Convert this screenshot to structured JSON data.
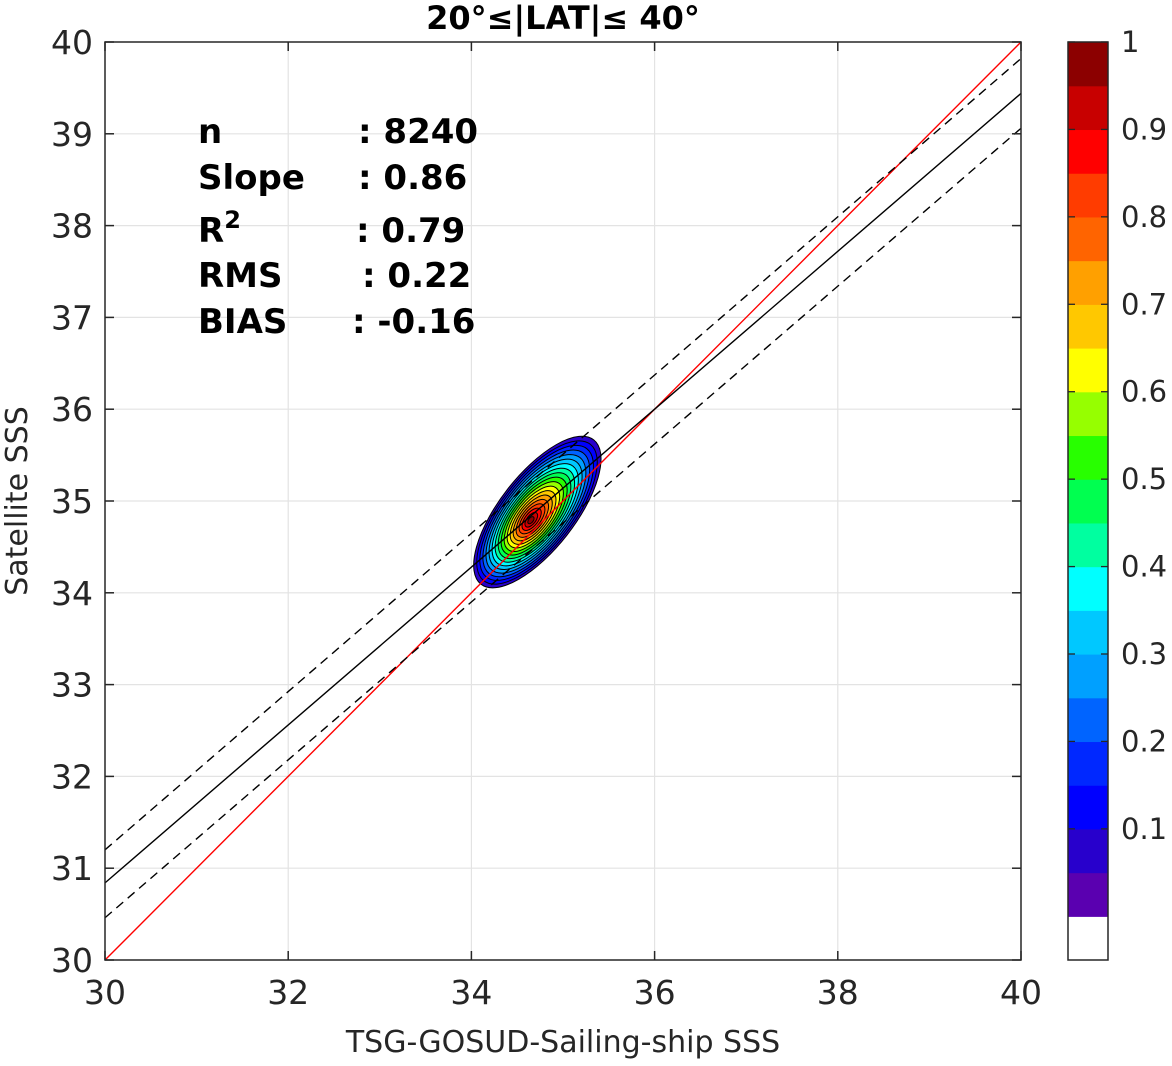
{
  "chart_data": {
    "type": "contour",
    "title": "20°≤|LAT|≤ 40°",
    "xlabel": "TSG-GOSUD-Sailing-ship SSS",
    "ylabel": "Satellite SSS",
    "xlim": [
      30,
      40
    ],
    "ylim": [
      30,
      40
    ],
    "xticks": [
      30,
      32,
      34,
      36,
      38,
      40
    ],
    "yticks": [
      30,
      31,
      32,
      33,
      34,
      35,
      36,
      37,
      38,
      39,
      40
    ],
    "grid": true,
    "stats": [
      {
        "label": "n",
        "value": ": 8240"
      },
      {
        "label": "Slope",
        "value": ": 0.86"
      },
      {
        "label": "R",
        "sup": "2",
        "value": ": 0.79"
      },
      {
        "label": "RMS",
        "value": ": 0.22"
      },
      {
        "label": "BIAS",
        "value": ": -0.16"
      }
    ],
    "lines": [
      {
        "name": "one-to-one",
        "color": "#ff0000",
        "style": "solid",
        "points": [
          [
            30,
            30
          ],
          [
            40,
            40
          ]
        ]
      },
      {
        "name": "regression",
        "color": "#000000",
        "style": "solid",
        "points": [
          [
            30,
            30.84
          ],
          [
            40,
            39.44
          ]
        ]
      },
      {
        "name": "regression-upper",
        "color": "#000000",
        "style": "dashed",
        "points": [
          [
            30,
            31.2
          ],
          [
            40,
            39.82
          ]
        ]
      },
      {
        "name": "regression-lower",
        "color": "#000000",
        "style": "dashed",
        "points": [
          [
            30,
            30.46
          ],
          [
            40,
            39.06
          ]
        ]
      }
    ],
    "density_center": [
      34.72,
      34.88
    ],
    "density_major_axis_angle_deg": 52,
    "density_extent": {
      "x": [
        34.15,
        35.75
      ],
      "y": [
        34.3,
        35.7
      ]
    },
    "colorbar": {
      "ticks": [
        0.1,
        0.2,
        0.3,
        0.4,
        0.5,
        0.6,
        0.7,
        0.8,
        0.9,
        1
      ],
      "tick_labels": [
        "0.1",
        "0.2",
        "0.3",
        "0.4",
        "0.5",
        "0.6",
        "0.7",
        "0.8",
        "0.9",
        "1"
      ],
      "colors": [
        "#ffffff",
        "#5a00b0",
        "#2800cc",
        "#0000ff",
        "#0028ff",
        "#0064ff",
        "#00a0ff",
        "#00c8ff",
        "#00ffff",
        "#00ffa0",
        "#00ff50",
        "#28ff00",
        "#96ff00",
        "#ffff00",
        "#ffc800",
        "#ffa000",
        "#ff6400",
        "#ff3c00",
        "#ff0000",
        "#c80000",
        "#8c0000"
      ]
    }
  }
}
